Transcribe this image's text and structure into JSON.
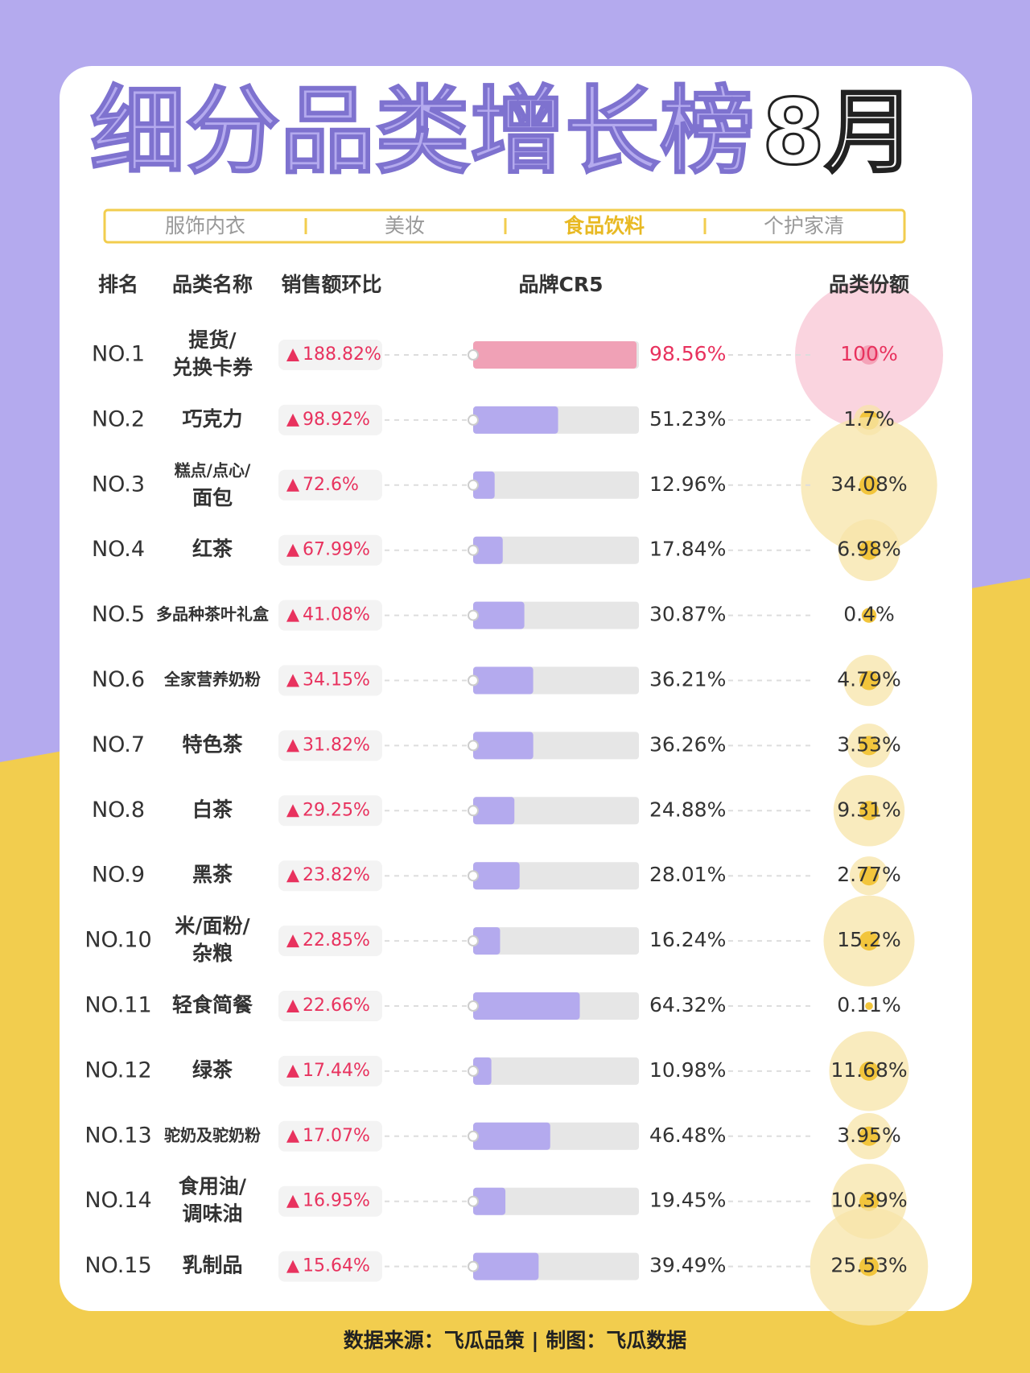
{
  "title": "细分品类增长榜",
  "month": "8月",
  "tabs": [
    "服饰内衣",
    "美妆",
    "食品饮料",
    "个护家清"
  ],
  "active_tab": 2,
  "headers": [
    "排名",
    "品类名称",
    "销售额环比",
    "品牌CR5",
    "品类份额"
  ],
  "rows": [
    {
      "rank": "NO.1",
      "name": [
        "提货/",
        "兑换卡券"
      ],
      "growth": "188.82%",
      "cr5": {
        "value": 98.56,
        "label": "98.56%"
      },
      "share": {
        "value": 100,
        "label": "100%"
      }
    },
    {
      "rank": "NO.2",
      "name": [
        "巧克力"
      ],
      "growth": "98.92%",
      "cr5": {
        "value": 51.23,
        "label": "51.23%"
      },
      "share": {
        "value": 1.7,
        "label": "1.7%"
      }
    },
    {
      "rank": "NO.3",
      "name": [
        "糕点/点心/",
        "面包"
      ],
      "growth": "72.6%",
      "cr5": {
        "value": 12.96,
        "label": "12.96%"
      },
      "share": {
        "value": 34.08,
        "label": "34.08%"
      }
    },
    {
      "rank": "NO.4",
      "name": [
        "红茶"
      ],
      "growth": "67.99%",
      "cr5": {
        "value": 17.84,
        "label": "17.84%"
      },
      "share": {
        "value": 6.98,
        "label": "6.98%"
      }
    },
    {
      "rank": "NO.5",
      "name": [
        "多品种茶叶礼盒"
      ],
      "growth": "41.08%",
      "cr5": {
        "value": 30.87,
        "label": "30.87%"
      },
      "share": {
        "value": 0.4,
        "label": "0.4%"
      }
    },
    {
      "rank": "NO.6",
      "name": [
        "全家营养奶粉"
      ],
      "growth": "34.15%",
      "cr5": {
        "value": 36.21,
        "label": "36.21%"
      },
      "share": {
        "value": 4.79,
        "label": "4.79%"
      }
    },
    {
      "rank": "NO.7",
      "name": [
        "特色茶"
      ],
      "growth": "31.82%",
      "cr5": {
        "value": 36.26,
        "label": "36.26%"
      },
      "share": {
        "value": 3.53,
        "label": "3.53%"
      }
    },
    {
      "rank": "NO.8",
      "name": [
        "白茶"
      ],
      "growth": "29.25%",
      "cr5": {
        "value": 24.88,
        "label": "24.88%"
      },
      "share": {
        "value": 9.31,
        "label": "9.31%"
      }
    },
    {
      "rank": "NO.9",
      "name": [
        "黑茶"
      ],
      "growth": "23.82%",
      "cr5": {
        "value": 28.01,
        "label": "28.01%"
      },
      "share": {
        "value": 2.77,
        "label": "2.77%"
      }
    },
    {
      "rank": "NO.10",
      "name": [
        "米/面粉/",
        "杂粮"
      ],
      "growth": "22.85%",
      "cr5": {
        "value": 16.24,
        "label": "16.24%"
      },
      "share": {
        "value": 15.2,
        "label": "15.2%"
      }
    },
    {
      "rank": "NO.11",
      "name": [
        "轻食简餐"
      ],
      "growth": "22.66%",
      "cr5": {
        "value": 64.32,
        "label": "64.32%"
      },
      "share": {
        "value": 0.11,
        "label": "0.11%"
      }
    },
    {
      "rank": "NO.12",
      "name": [
        "绿茶"
      ],
      "growth": "17.44%",
      "cr5": {
        "value": 10.98,
        "label": "10.98%"
      },
      "share": {
        "value": 11.68,
        "label": "11.68%"
      }
    },
    {
      "rank": "NO.13",
      "name": [
        "驼奶及驼奶粉"
      ],
      "growth": "17.07%",
      "cr5": {
        "value": 46.48,
        "label": "46.48%"
      },
      "share": {
        "value": 3.95,
        "label": "3.95%"
      }
    },
    {
      "rank": "NO.14",
      "name": [
        "食用油/",
        "调味油"
      ],
      "growth": "16.95%",
      "cr5": {
        "value": 19.45,
        "label": "19.45%"
      },
      "share": {
        "value": 10.39,
        "label": "10.39%"
      }
    },
    {
      "rank": "NO.15",
      "name": [
        "乳制品"
      ],
      "growth": "15.64%",
      "cr5": {
        "value": 39.49,
        "label": "39.49%"
      },
      "share": {
        "value": 25.53,
        "label": "25.53%"
      }
    }
  ],
  "footer": "数据来源：飞瓜品策 | 制图：飞瓜数据"
}
